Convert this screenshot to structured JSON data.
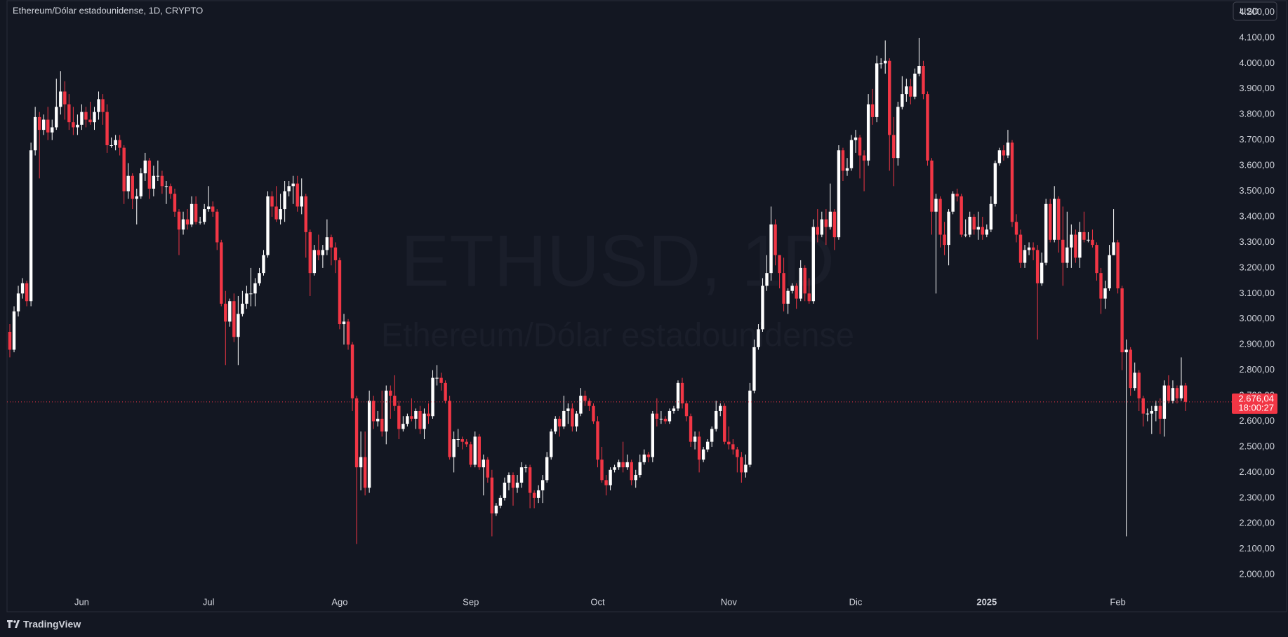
{
  "chart_data": {
    "type": "candlestick",
    "title": "Ethereum/Dólar estadounidense, 1D, CRYPTO",
    "currency": "USD",
    "watermark_symbol": "ETHUSD, 1D",
    "watermark_name": "Ethereum/Dólar estadounidense",
    "brand": "TradingView",
    "last_price_label": "2.676,04",
    "countdown": "18:00:27",
    "up_color": "#ffffff",
    "down_color": "#f23645",
    "ylim": [
      1855,
      4248
    ],
    "yticks": [
      {
        "value": 2000,
        "label": "2.000,00"
      },
      {
        "value": 2100,
        "label": "2.100,00"
      },
      {
        "value": 2200,
        "label": "2.200,00"
      },
      {
        "value": 2300,
        "label": "2.300,00"
      },
      {
        "value": 2400,
        "label": "2.400,00"
      },
      {
        "value": 2500,
        "label": "2.500,00"
      },
      {
        "value": 2600,
        "label": "2.600,00"
      },
      {
        "value": 2700,
        "label": "2.700,00"
      },
      {
        "value": 2800,
        "label": "2.800,00"
      },
      {
        "value": 2900,
        "label": "2.900,00"
      },
      {
        "value": 3000,
        "label": "3.000,00"
      },
      {
        "value": 3100,
        "label": "3.100,00"
      },
      {
        "value": 3200,
        "label": "3.200,00"
      },
      {
        "value": 3300,
        "label": "3.300,00"
      },
      {
        "value": 3400,
        "label": "3.400,00"
      },
      {
        "value": 3500,
        "label": "3.500,00"
      },
      {
        "value": 3600,
        "label": "3.600,00"
      },
      {
        "value": 3700,
        "label": "3.700,00"
      },
      {
        "value": 3800,
        "label": "3.800,00"
      },
      {
        "value": 3900,
        "label": "3.900,00"
      },
      {
        "value": 4000,
        "label": "4.000,00"
      },
      {
        "value": 4100,
        "label": "4.100,00"
      },
      {
        "value": 4200,
        "label": "4.200,00"
      }
    ],
    "categories": [
      null,
      null,
      null,
      null,
      null,
      null,
      null,
      null,
      null,
      null,
      null,
      null,
      null,
      null,
      null,
      null,
      null,
      "Jun",
      null,
      null,
      null,
      null,
      null,
      null,
      null,
      null,
      null,
      null,
      null,
      null,
      null,
      null,
      null,
      null,
      null,
      null,
      null,
      null,
      null,
      null,
      null,
      null,
      null,
      null,
      null,
      null,
      null,
      "Jul",
      null,
      null,
      null,
      null,
      null,
      null,
      null,
      null,
      null,
      null,
      null,
      null,
      null,
      null,
      null,
      null,
      null,
      null,
      null,
      null,
      null,
      null,
      null,
      null,
      null,
      null,
      null,
      null,
      null,
      null,
      "Ago",
      null,
      null,
      null,
      null,
      null,
      null,
      null,
      null,
      null,
      null,
      null,
      null,
      null,
      null,
      null,
      null,
      null,
      null,
      null,
      null,
      null,
      null,
      null,
      null,
      null,
      null,
      null,
      null,
      null,
      null,
      "Sep",
      null,
      null,
      null,
      null,
      null,
      null,
      null,
      null,
      null,
      null,
      null,
      null,
      null,
      null,
      null,
      null,
      null,
      null,
      null,
      null,
      null,
      null,
      null,
      null,
      null,
      null,
      null,
      null,
      null,
      "Oct",
      null,
      null,
      null,
      null,
      null,
      null,
      null,
      null,
      null,
      null,
      null,
      null,
      null,
      null,
      null,
      null,
      null,
      null,
      null,
      null,
      null,
      null,
      null,
      null,
      null,
      null,
      null,
      null,
      null,
      null,
      "Nov",
      null,
      null,
      null,
      null,
      null,
      null,
      null,
      null,
      null,
      null,
      null,
      null,
      null,
      null,
      null,
      null,
      null,
      null,
      null,
      null,
      null,
      null,
      null,
      null,
      null,
      null,
      null,
      null,
      null,
      "Dic",
      null,
      null,
      null,
      null,
      null,
      null,
      null,
      null,
      null,
      null,
      null,
      null,
      null,
      null,
      null,
      null,
      null,
      null,
      null,
      null,
      null,
      null,
      null,
      null,
      null,
      null,
      null,
      null,
      null,
      null,
      "2025",
      null,
      null,
      null,
      null,
      null,
      null,
      null,
      null,
      null,
      null,
      null,
      null,
      null,
      null,
      null,
      null,
      null,
      null,
      null,
      null,
      null,
      null,
      null,
      null,
      null,
      null,
      null,
      null,
      null,
      null,
      "Feb",
      null,
      null,
      null,
      null,
      null,
      null,
      null,
      null,
      null,
      null,
      null,
      null,
      null,
      null,
      null,
      null
    ],
    "open": [
      2950,
      2880,
      3030,
      3100,
      3140,
      3070,
      3660,
      3790,
      3740,
      3780,
      3730,
      3750,
      3830,
      3890,
      3840,
      3770,
      3750,
      3760,
      3810,
      3780,
      3770,
      3810,
      3860,
      3810,
      3680,
      3680,
      3700,
      3670,
      3500,
      3560,
      3470,
      3480,
      3570,
      3620,
      3510,
      3560,
      3560,
      3520,
      3520,
      3490,
      3420,
      3350,
      3390,
      3370,
      3450,
      3380,
      3380,
      3430,
      3440,
      3420,
      3300,
      3060,
      2990,
      3070,
      2930,
      3020,
      3060,
      3100,
      3100,
      3140,
      3180,
      3250,
      3480,
      3440,
      3390,
      3430,
      3500,
      3520,
      3530,
      3440,
      3480,
      3340,
      3180,
      3270,
      3250,
      3270,
      3320,
      3280,
      3230,
      2980,
      2990,
      2900,
      2690,
      2420,
      2460,
      2340,
      2680,
      2600,
      2610,
      2560,
      2720,
      2700,
      2660,
      2570,
      2590,
      2620,
      2610,
      2640,
      2570,
      2630,
      2620,
      2770,
      2770,
      2750,
      2680,
      2460,
      2530,
      2530,
      2520,
      2510,
      2430,
      2540,
      2420,
      2450,
      2380,
      2240,
      2270,
      2300,
      2360,
      2390,
      2340,
      2360,
      2420,
      2420,
      2320,
      2300,
      2330,
      2370,
      2460,
      2560,
      2610,
      2580,
      2640,
      2650,
      2580,
      2630,
      2700,
      2680,
      2660,
      2600,
      2450,
      2370,
      2350,
      2410,
      2420,
      2440,
      2420,
      2440,
      2370,
      2390,
      2440,
      2470,
      2460,
      2630,
      2610,
      2610,
      2600,
      2640,
      2650,
      2750,
      2670,
      2620,
      2520,
      2540,
      2450,
      2490,
      2520,
      2570,
      2640,
      2660,
      2520,
      2510,
      2490,
      2460,
      2400,
      2430,
      2720,
      2890,
      2960,
      3130,
      3180,
      3370,
      3250,
      3180,
      3060,
      3110,
      3130,
      3080,
      3200,
      3100,
      3070,
      3360,
      3330,
      3390,
      3360,
      3420,
      3320,
      3660,
      3580,
      3590,
      3700,
      3710,
      3640,
      3620,
      3840,
      3790,
      4000,
      4000,
      4010,
      3720,
      3630,
      3830,
      3880,
      3910,
      3870,
      3960,
      3990,
      3880,
      3620,
      3420,
      3470,
      3330,
      3290,
      3420,
      3490,
      3480,
      3330,
      3330,
      3400,
      3350,
      3360,
      3330,
      3350,
      3450,
      3610,
      3660,
      3640,
      3690,
      3380,
      3330,
      3220,
      3270,
      3280,
      3270,
      3140,
      3220,
      3450,
      3310,
      3470,
      3310,
      3220,
      3280,
      3330,
      3240,
      3340,
      3310,
      3310,
      3290,
      3180,
      3080,
      3120,
      3250,
      3300,
      3120,
      2870,
      2880,
      2730,
      2790,
      2690,
      2630,
      2630,
      2640,
      2660,
      2610,
      2740,
      2680,
      2730,
      2690,
      2740
    ],
    "high": [
      2980,
      3050,
      3130,
      3160,
      3150,
      3690,
      3830,
      3810,
      3800,
      3830,
      3780,
      3940,
      3970,
      3930,
      3880,
      3830,
      3800,
      3840,
      3830,
      3850,
      3830,
      3890,
      3880,
      3840,
      3710,
      3720,
      3720,
      3680,
      3610,
      3570,
      3510,
      3590,
      3650,
      3630,
      3600,
      3620,
      3580,
      3540,
      3530,
      3510,
      3430,
      3420,
      3430,
      3480,
      3480,
      3400,
      3450,
      3520,
      3460,
      3430,
      3310,
      3110,
      3080,
      3100,
      3090,
      3110,
      3130,
      3200,
      3160,
      3200,
      3270,
      3500,
      3500,
      3520,
      3490,
      3540,
      3540,
      3560,
      3560,
      3550,
      3490,
      3350,
      3290,
      3330,
      3290,
      3390,
      3330,
      3300,
      3240,
      3020,
      3000,
      2910,
      2700,
      2560,
      2560,
      2720,
      2700,
      2640,
      2720,
      2740,
      2740,
      2780,
      2680,
      2620,
      2630,
      2690,
      2650,
      2660,
      2650,
      2670,
      2800,
      2820,
      2790,
      2760,
      2700,
      2560,
      2570,
      2540,
      2530,
      2520,
      2560,
      2550,
      2470,
      2460,
      2410,
      2280,
      2310,
      2380,
      2400,
      2400,
      2390,
      2440,
      2430,
      2430,
      2330,
      2350,
      2390,
      2480,
      2570,
      2620,
      2620,
      2700,
      2670,
      2670,
      2640,
      2730,
      2720,
      2690,
      2670,
      2620,
      2500,
      2390,
      2420,
      2430,
      2450,
      2520,
      2470,
      2450,
      2410,
      2470,
      2490,
      2480,
      2640,
      2690,
      2640,
      2620,
      2650,
      2660,
      2760,
      2770,
      2680,
      2630,
      2560,
      2560,
      2500,
      2530,
      2580,
      2680,
      2670,
      2670,
      2580,
      2530,
      2500,
      2480,
      2470,
      2750,
      2920,
      2980,
      3160,
      3250,
      3440,
      3390,
      3250,
      3240,
      3120,
      3140,
      3140,
      3230,
      3210,
      3160,
      3390,
      3430,
      3420,
      3430,
      3530,
      3430,
      3680,
      3670,
      3630,
      3720,
      3740,
      3720,
      3660,
      3880,
      3900,
      4030,
      4020,
      4090,
      4020,
      3790,
      3850,
      3950,
      3940,
      3940,
      3980,
      4100,
      4010,
      3890,
      3630,
      3490,
      3480,
      3380,
      3430,
      3500,
      3510,
      3490,
      3390,
      3420,
      3410,
      3420,
      3400,
      3370,
      3480,
      3620,
      3670,
      3680,
      3740,
      3700,
      3410,
      3350,
      3290,
      3300,
      3300,
      3290,
      3260,
      3470,
      3470,
      3520,
      3480,
      3440,
      3420,
      3370,
      3350,
      3380,
      3420,
      3340,
      3350,
      3300,
      3200,
      3150,
      3290,
      3430,
      3310,
      3130,
      2920,
      2890,
      2830,
      2800,
      2700,
      2650,
      2660,
      2680,
      2690,
      2760,
      2780,
      2760,
      2740,
      2850,
      2750
    ],
    "low": [
      2850,
      2870,
      3010,
      3080,
      3050,
      3050,
      3640,
      3550,
      3720,
      3700,
      3700,
      3740,
      3800,
      3780,
      3740,
      3720,
      3720,
      3740,
      3750,
      3760,
      3740,
      3780,
      3760,
      3650,
      3670,
      3660,
      3640,
      3450,
      3470,
      3430,
      3370,
      3470,
      3540,
      3470,
      3480,
      3540,
      3490,
      3450,
      3470,
      3400,
      3250,
      3330,
      3350,
      3360,
      3370,
      3370,
      3370,
      3420,
      3400,
      3270,
      3050,
      2820,
      2970,
      2910,
      2820,
      3010,
      3040,
      3050,
      3050,
      3130,
      3170,
      3240,
      3400,
      3380,
      3370,
      3380,
      3480,
      3450,
      3420,
      3410,
      3240,
      3090,
      3170,
      3230,
      3200,
      3250,
      3210,
      3180,
      2960,
      2900,
      2880,
      2640,
      2120,
      2330,
      2310,
      2320,
      2570,
      2580,
      2540,
      2510,
      2610,
      2640,
      2530,
      2560,
      2580,
      2600,
      2570,
      2550,
      2530,
      2590,
      2610,
      2740,
      2720,
      2670,
      2450,
      2400,
      2500,
      2490,
      2500,
      2420,
      2420,
      2410,
      2310,
      2360,
      2150,
      2230,
      2260,
      2290,
      2330,
      2270,
      2320,
      2340,
      2400,
      2260,
      2260,
      2280,
      2280,
      2360,
      2450,
      2550,
      2540,
      2570,
      2590,
      2560,
      2560,
      2620,
      2660,
      2640,
      2590,
      2420,
      2360,
      2310,
      2330,
      2400,
      2410,
      2400,
      2410,
      2350,
      2340,
      2380,
      2430,
      2440,
      2440,
      2580,
      2590,
      2590,
      2590,
      2630,
      2640,
      2650,
      2600,
      2500,
      2490,
      2400,
      2440,
      2480,
      2500,
      2560,
      2620,
      2510,
      2490,
      2470,
      2400,
      2360,
      2380,
      2420,
      2710,
      2880,
      2950,
      3110,
      3150,
      3210,
      3120,
      3030,
      3020,
      3100,
      3040,
      3070,
      3070,
      3060,
      3060,
      3300,
      3320,
      3290,
      3350,
      3270,
      3310,
      3540,
      3560,
      3580,
      3650,
      3550,
      3500,
      3600,
      3760,
      3770,
      3980,
      3960,
      3580,
      3520,
      3600,
      3820,
      3850,
      3840,
      3860,
      3950,
      3860,
      3600,
      3330,
      3100,
      3280,
      3250,
      3210,
      3410,
      3460,
      3320,
      3320,
      3320,
      3330,
      3310,
      3310,
      3320,
      3340,
      3440,
      3600,
      3620,
      3630,
      3360,
      3300,
      3200,
      3200,
      3250,
      3230,
      2920,
      3130,
      3210,
      3300,
      3300,
      3260,
      3130,
      3200,
      3200,
      3220,
      3200,
      3300,
      3300,
      3280,
      3150,
      3020,
      3040,
      3110,
      3250,
      3100,
      2800,
      2150,
      2700,
      2720,
      2640,
      2580,
      2600,
      2550,
      2600,
      2550,
      2540,
      2670,
      2670,
      2670,
      2680,
      2640
    ],
    "close": [
      2880,
      3030,
      3100,
      3140,
      3070,
      3660,
      3790,
      3740,
      3780,
      3730,
      3750,
      3830,
      3890,
      3840,
      3770,
      3750,
      3760,
      3810,
      3780,
      3770,
      3810,
      3860,
      3810,
      3680,
      3680,
      3700,
      3670,
      3500,
      3560,
      3470,
      3480,
      3570,
      3620,
      3510,
      3560,
      3560,
      3520,
      3520,
      3490,
      3420,
      3350,
      3390,
      3370,
      3450,
      3380,
      3380,
      3430,
      3440,
      3420,
      3300,
      3060,
      2990,
      3070,
      2930,
      3020,
      3060,
      3100,
      3100,
      3140,
      3180,
      3250,
      3480,
      3440,
      3390,
      3430,
      3500,
      3520,
      3530,
      3440,
      3480,
      3340,
      3180,
      3270,
      3250,
      3270,
      3320,
      3280,
      3230,
      2980,
      2990,
      2900,
      2690,
      2420,
      2460,
      2340,
      2680,
      2600,
      2610,
      2560,
      2720,
      2700,
      2660,
      2570,
      2590,
      2620,
      2610,
      2640,
      2570,
      2630,
      2620,
      2770,
      2770,
      2750,
      2680,
      2460,
      2530,
      2530,
      2520,
      2510,
      2430,
      2540,
      2420,
      2450,
      2380,
      2240,
      2270,
      2300,
      2360,
      2390,
      2340,
      2360,
      2420,
      2420,
      2320,
      2300,
      2330,
      2370,
      2460,
      2560,
      2610,
      2580,
      2640,
      2650,
      2580,
      2630,
      2700,
      2680,
      2660,
      2600,
      2450,
      2370,
      2350,
      2410,
      2420,
      2440,
      2420,
      2440,
      2370,
      2390,
      2440,
      2470,
      2460,
      2630,
      2610,
      2610,
      2600,
      2640,
      2650,
      2750,
      2670,
      2620,
      2520,
      2540,
      2450,
      2490,
      2520,
      2570,
      2640,
      2660,
      2520,
      2510,
      2490,
      2460,
      2400,
      2430,
      2720,
      2890,
      2960,
      3130,
      3180,
      3370,
      3250,
      3180,
      3060,
      3110,
      3130,
      3080,
      3200,
      3100,
      3070,
      3360,
      3330,
      3390,
      3360,
      3420,
      3320,
      3660,
      3580,
      3590,
      3700,
      3710,
      3640,
      3620,
      3840,
      3790,
      4000,
      4000,
      4010,
      3720,
      3630,
      3830,
      3880,
      3910,
      3870,
      3960,
      3990,
      3880,
      3620,
      3420,
      3470,
      3330,
      3290,
      3420,
      3490,
      3480,
      3330,
      3330,
      3400,
      3350,
      3360,
      3330,
      3350,
      3450,
      3610,
      3660,
      3640,
      3690,
      3380,
      3330,
      3220,
      3270,
      3280,
      3270,
      3140,
      3220,
      3450,
      3310,
      3470,
      3310,
      3220,
      3280,
      3330,
      3240,
      3340,
      3310,
      3310,
      3290,
      3180,
      3080,
      3120,
      3250,
      3300,
      3120,
      2870,
      2880,
      2730,
      2790,
      2690,
      2630,
      2630,
      2640,
      2660,
      2610,
      2740,
      2680,
      2730,
      2690,
      2740,
      2676.04
    ]
  }
}
